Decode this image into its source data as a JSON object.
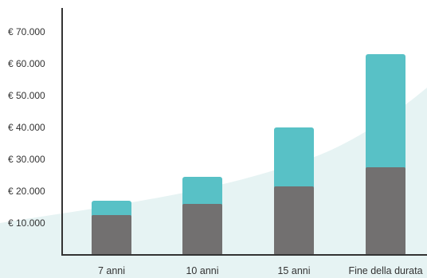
{
  "chart_data": {
    "type": "bar",
    "stacked": true,
    "categories": [
      "7 anni",
      "10 anni",
      "15 anni",
      "Fine della durata"
    ],
    "series": [
      {
        "values": [
          12500,
          16000,
          21500,
          27500
        ]
      },
      {
        "values": [
          4500,
          8500,
          18500,
          35500
        ]
      }
    ],
    "y_ticks": [
      10000,
      20000,
      30000,
      40000,
      50000,
      60000,
      70000
    ],
    "y_tick_labels": [
      "€ 10.000",
      "€ 20.000",
      "€ 30.000",
      "€ 40.000",
      "€ 50.000",
      "€ 60.000",
      "€ 70.000"
    ],
    "ylim": [
      0,
      77500
    ],
    "grid": false,
    "legend": "none",
    "colors": {
      "base": "#727070",
      "top": "#58c1c6",
      "background_curve": "#e6f3f3",
      "axis": "#333333"
    }
  }
}
